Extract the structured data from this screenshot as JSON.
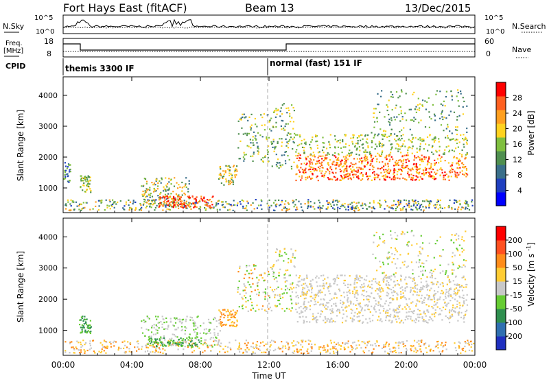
{
  "header": {
    "title": "Fort Hays East (fitACF)",
    "beam": "Beam 13",
    "date": "13/Dec/2015"
  },
  "noise_panel": {
    "left_label": "N.Sky",
    "right_label": "N.Search",
    "left_ticks": [
      "10^5",
      "10^0"
    ],
    "right_ticks": [
      "10^5",
      "10^0"
    ]
  },
  "freq_panel": {
    "left_label_1": "Freq.",
    "left_label_2": "[MHz]",
    "right_label": "Nave",
    "left_ticks": [
      "18",
      "8"
    ],
    "right_ticks": [
      "60",
      "0"
    ]
  },
  "cpid_panel": {
    "label": "CPID",
    "mode_1": "themis 3300 IF",
    "mode_2": "normal (fast) 151 IF"
  },
  "chart_data": [
    {
      "type": "heatmap",
      "quantity": "Power",
      "ylabel": "Slant Range [km]",
      "y_ticks": [
        "1000",
        "2000",
        "3000",
        "4000"
      ],
      "ylim": [
        200,
        4600
      ],
      "xlim": [
        "00:00",
        "24:00"
      ],
      "colorbar": {
        "label": "Power [dB]",
        "ticks": [
          "4",
          "8",
          "12",
          "16",
          "20",
          "24",
          "28"
        ],
        "range": [
          0,
          32
        ],
        "colors": [
          "#0000ff",
          "#1f3fbf",
          "#3a6f8a",
          "#4f8f4f",
          "#7fbf3f",
          "#ffd21f",
          "#ff9f1f",
          "#ff6020",
          "#ff0000"
        ]
      }
    },
    {
      "type": "heatmap",
      "quantity": "Velocity",
      "ylabel": "Slant Range [km]",
      "y_ticks": [
        "1000",
        "2000",
        "3000",
        "4000"
      ],
      "ylim": [
        200,
        4600
      ],
      "xlim": [
        "00:00",
        "24:00"
      ],
      "colorbar": {
        "label": "Velocity [m s^-1]",
        "ticks": [
          "200",
          "100",
          "50",
          "15",
          "-15",
          "-50",
          "-100",
          "-200"
        ],
        "colors": [
          "#1f2fbf",
          "#2f6fb0",
          "#2f8f4f",
          "#66cc33",
          "#c8c8c8",
          "#ffcc33",
          "#ff8c1a",
          "#ff5020",
          "#ff0000"
        ]
      }
    }
  ],
  "x_axis": {
    "ticks": [
      "00:00",
      "04:00",
      "08:00",
      "12:00",
      "16:00",
      "20:00",
      "00:00"
    ],
    "label": "Time UT"
  }
}
